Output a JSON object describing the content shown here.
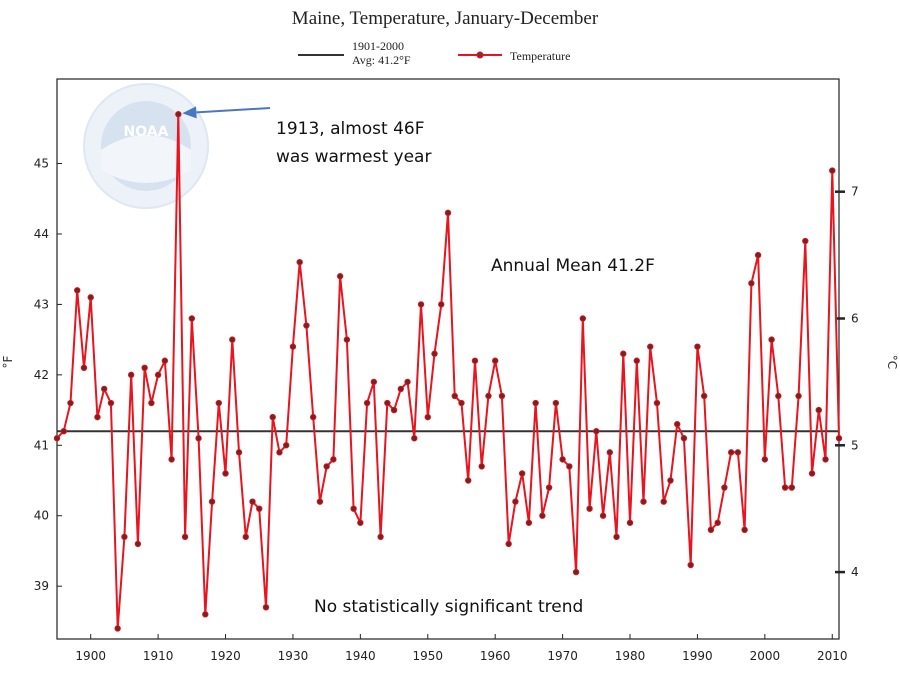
{
  "chart_data": {
    "type": "line",
    "title": "Maine, Temperature, January-December",
    "xlabel": "",
    "ylabel": "°F",
    "ylabel_right": "°C",
    "xlim": [
      1895,
      2011
    ],
    "ylim": [
      38.25,
      46.2
    ],
    "x_ticks": [
      "1900",
      "1910",
      "1920",
      "1930",
      "1940",
      "1950",
      "1960",
      "1970",
      "1980",
      "1990",
      "2000",
      "2010"
    ],
    "y_ticks": [
      "39",
      "40",
      "41",
      "42",
      "43",
      "44",
      "45"
    ],
    "y_ticks_right": [
      "4",
      "5",
      "6",
      "7"
    ],
    "legend": [
      {
        "label_line1": "1901-2000",
        "label_line2": "Avg: 41.2°F",
        "color": "#333333"
      },
      {
        "label": "Temperature",
        "color": "#e8141e"
      }
    ],
    "average": 41.2,
    "series": [
      {
        "name": "Temperature",
        "color": "#e8141e",
        "x": [
          1895,
          1896,
          1897,
          1898,
          1899,
          1900,
          1901,
          1902,
          1903,
          1904,
          1905,
          1906,
          1907,
          1908,
          1909,
          1910,
          1911,
          1912,
          1913,
          1914,
          1915,
          1916,
          1917,
          1918,
          1919,
          1920,
          1921,
          1922,
          1923,
          1924,
          1925,
          1926,
          1927,
          1928,
          1929,
          1930,
          1931,
          1932,
          1933,
          1934,
          1935,
          1936,
          1937,
          1938,
          1939,
          1940,
          1941,
          1942,
          1943,
          1944,
          1945,
          1946,
          1947,
          1948,
          1949,
          1950,
          1951,
          1952,
          1953,
          1954,
          1955,
          1956,
          1957,
          1958,
          1959,
          1960,
          1961,
          1962,
          1963,
          1964,
          1965,
          1966,
          1967,
          1968,
          1969,
          1970,
          1971,
          1972,
          1973,
          1974,
          1975,
          1976,
          1977,
          1978,
          1979,
          1980,
          1981,
          1982,
          1983,
          1984,
          1985,
          1986,
          1987,
          1988,
          1989,
          1990,
          1991,
          1992,
          1993,
          1994,
          1995,
          1996,
          1997,
          1998,
          1999,
          2000,
          2001,
          2002,
          2003,
          2004,
          2005,
          2006,
          2007,
          2008,
          2009,
          2010,
          2011
        ],
        "values": [
          41.1,
          41.2,
          41.6,
          43.2,
          42.1,
          43.1,
          41.4,
          41.8,
          41.6,
          38.4,
          39.7,
          42.0,
          39.6,
          42.1,
          41.6,
          42.0,
          42.2,
          40.8,
          45.7,
          39.7,
          42.8,
          41.1,
          38.6,
          40.2,
          41.6,
          40.6,
          42.5,
          40.9,
          39.7,
          40.2,
          40.1,
          38.7,
          41.4,
          40.9,
          41.0,
          42.4,
          43.6,
          42.7,
          41.4,
          40.2,
          40.7,
          40.8,
          43.4,
          42.5,
          40.1,
          39.9,
          41.6,
          41.9,
          39.7,
          41.6,
          41.5,
          41.8,
          41.9,
          41.1,
          43.0,
          41.4,
          42.3,
          43.0,
          44.3,
          41.7,
          41.6,
          40.5,
          42.2,
          40.7,
          41.7,
          42.2,
          41.7,
          39.6,
          40.2,
          40.6,
          39.9,
          41.6,
          40.0,
          40.4,
          41.6,
          40.8,
          40.7,
          39.2,
          42.8,
          40.1,
          41.2,
          40.0,
          40.9,
          39.7,
          42.3,
          39.9,
          42.2,
          40.2,
          42.4,
          41.6,
          40.2,
          40.5,
          41.3,
          41.1,
          39.3,
          42.4,
          41.7,
          39.8,
          39.9,
          40.4,
          40.9,
          40.9,
          39.8,
          43.3,
          43.7,
          40.8,
          42.5,
          41.7,
          40.4,
          40.4,
          41.7,
          43.9,
          40.6,
          41.5,
          40.8,
          44.9,
          41.1
        ]
      }
    ],
    "annotations": [
      {
        "text_line1": "1913, almost 46F",
        "text_line2": "was warmest year",
        "points_to": {
          "x": 1913,
          "y": 45.7
        }
      },
      {
        "text": "Annual Mean 41.2F"
      },
      {
        "text": "No statistically significant trend"
      }
    ],
    "logo": {
      "text": "NOAA"
    },
    "grid": false
  }
}
